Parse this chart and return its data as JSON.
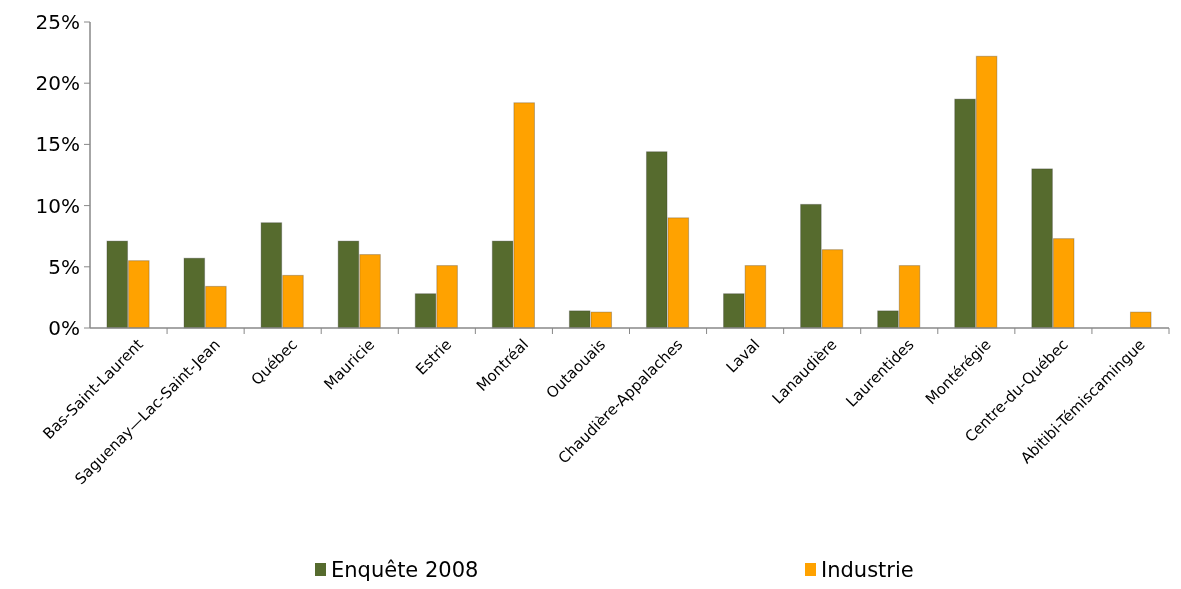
{
  "chart_data": {
    "type": "bar",
    "categories": [
      "Bas-Saint-Laurent",
      "Saguenay—Lac-Saint-Jean",
      "Québec",
      "Mauricie",
      "Estrie",
      "Montréal",
      "Outaouais",
      "Chaudière-Appalaches",
      "Laval",
      "Lanaudière",
      "Laurentides",
      "Montérégie",
      "Centre-du-Québec",
      "Abitibi-Témiscamingue"
    ],
    "series": [
      {
        "name": "Enquête 2008",
        "color": "#566b2e",
        "values": [
          7.1,
          5.7,
          8.6,
          7.1,
          2.8,
          7.1,
          1.4,
          14.4,
          2.8,
          10.1,
          1.4,
          18.7,
          13.0,
          null
        ]
      },
      {
        "name": "Industrie",
        "color": "#ffa200",
        "values": [
          5.5,
          3.4,
          4.3,
          6.0,
          5.1,
          18.4,
          1.3,
          9.0,
          5.1,
          6.4,
          5.1,
          22.2,
          7.3,
          1.3
        ]
      }
    ],
    "ylim": [
      0,
      25
    ],
    "yticks": [
      {
        "value": 0,
        "label": "0%"
      },
      {
        "value": 5,
        "label": "5%"
      },
      {
        "value": 10,
        "label": "10%"
      },
      {
        "value": 15,
        "label": "15%"
      },
      {
        "value": 20,
        "label": "20%"
      },
      {
        "value": 25,
        "label": "25%"
      }
    ],
    "grid": false,
    "legend": "bottom"
  }
}
